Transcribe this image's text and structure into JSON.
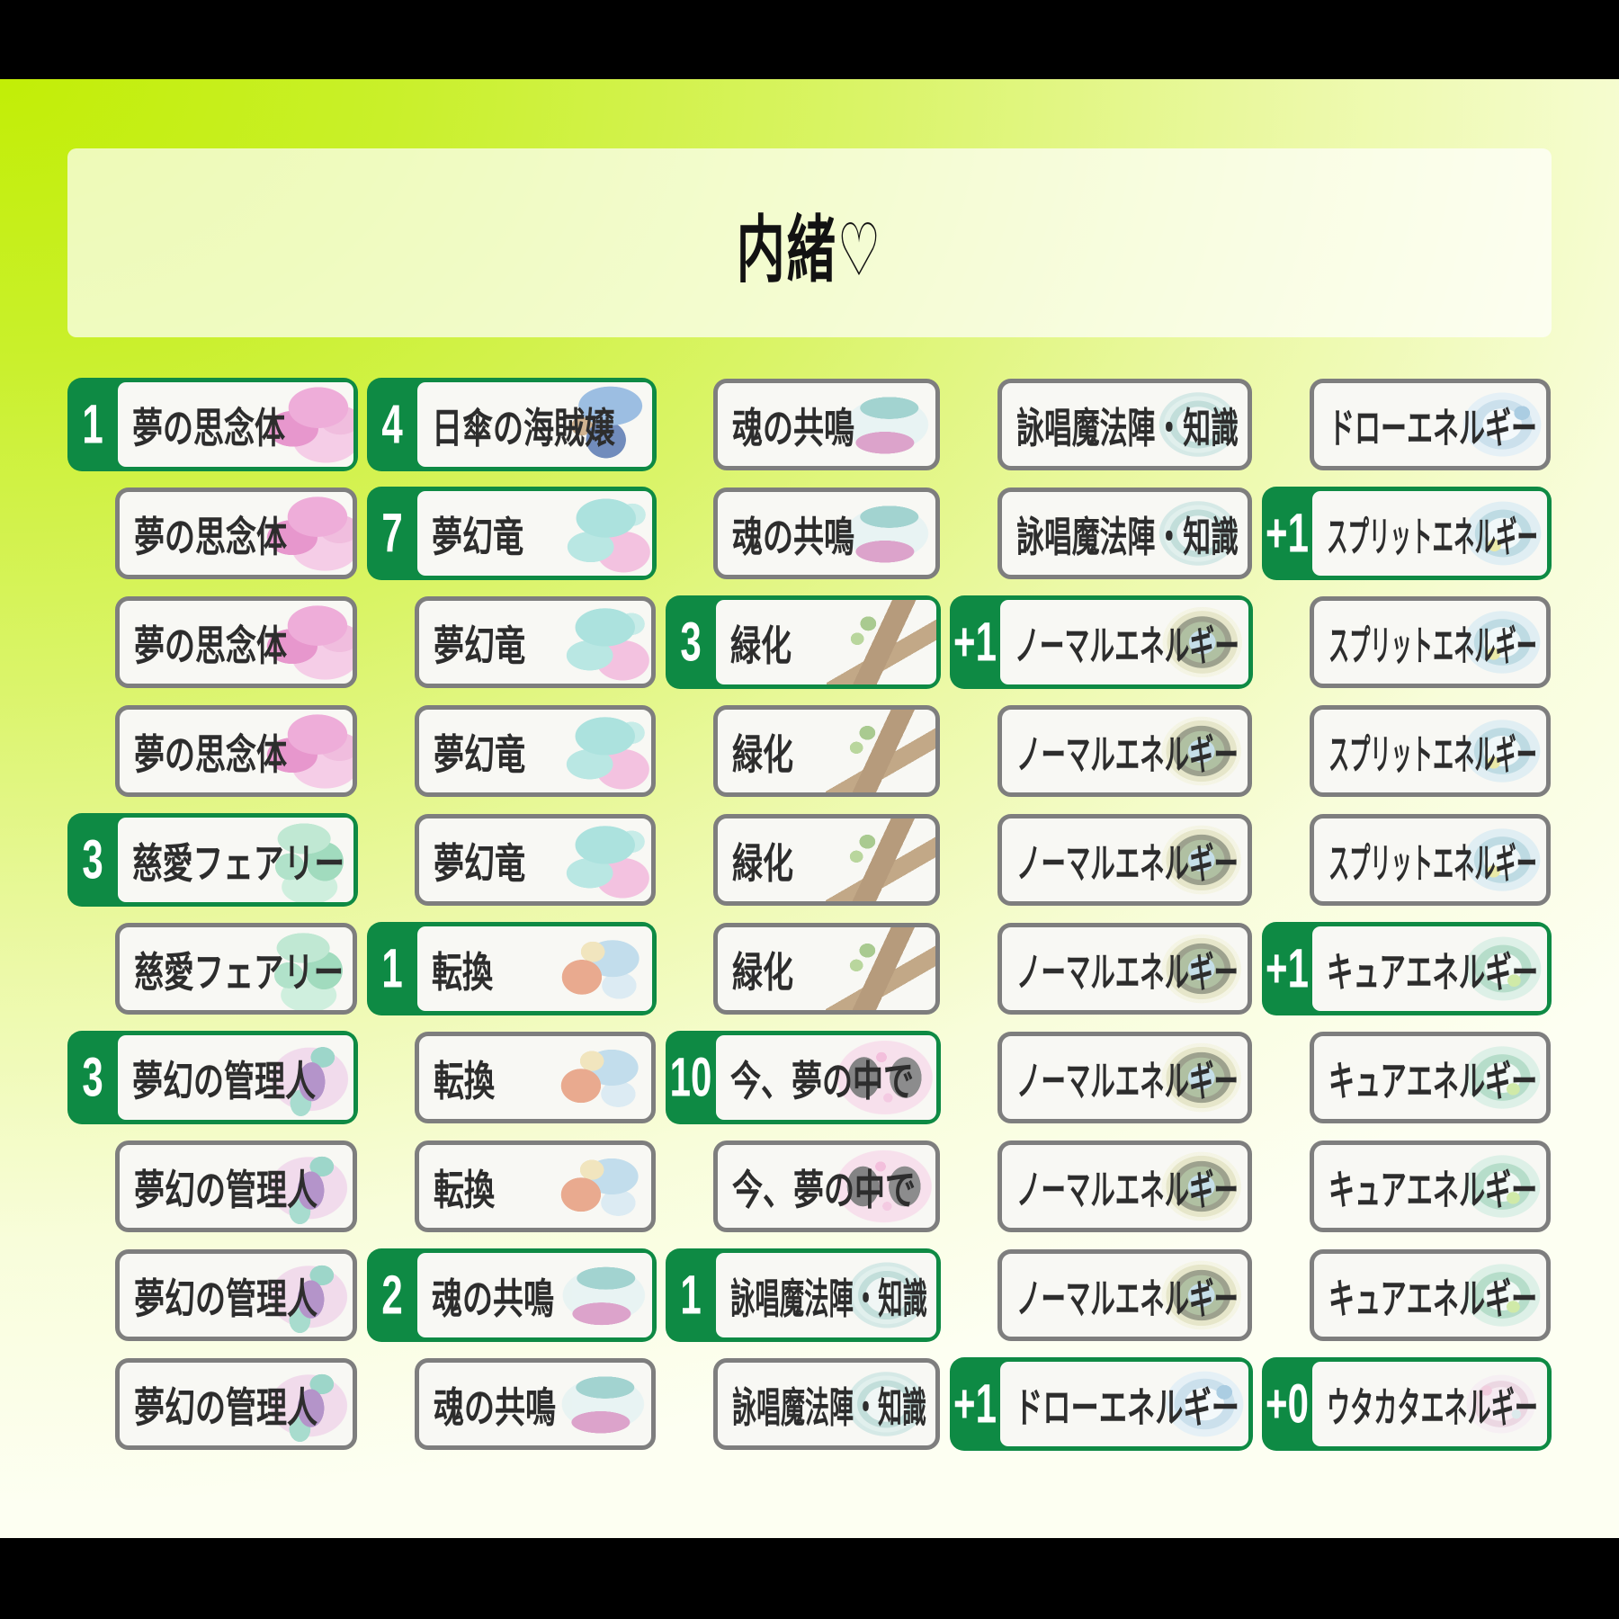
{
  "title": "内緒♡",
  "colors": {
    "accent_green": "#0e8a44",
    "border_gray": "#7e7e7e",
    "card_bg": "#f8f8f4",
    "name_text": "#2d2d2d",
    "letterbox": "#000000",
    "background_bright": "#c2ee06",
    "background_pale": "#fdfff2"
  },
  "arts": {
    "夢の思念体": "dream-wisp",
    "慈愛フェアリー": "charity-fairy",
    "夢幻の管理人": "dream-caretaker",
    "日傘の海賊嬢": "parasol-pirate",
    "夢幻竜": "dream-dragon",
    "転換": "conversion",
    "魂の共鳴": "soul-resonance",
    "緑化": "greening",
    "今、夢の中で": "in-a-dream",
    "詠唱魔法陣・知識": "chant-circle",
    "ノーマルエネルギー": "normal-energy",
    "ドローエネルギー": "draw-energy",
    "スプリットエネルギー": "split-energy",
    "キュアエネルギー": "cure-energy",
    "ウタカタエネルギー": "utakata-energy"
  },
  "deck": {
    "columns": [
      {
        "cards": [
          {
            "count": "1",
            "name": "夢の思念体"
          },
          {
            "count": null,
            "name": "夢の思念体"
          },
          {
            "count": null,
            "name": "夢の思念体"
          },
          {
            "count": null,
            "name": "夢の思念体"
          },
          {
            "count": "3",
            "name": "慈愛フェアリー"
          },
          {
            "count": null,
            "name": "慈愛フェアリー"
          },
          {
            "count": "3",
            "name": "夢幻の管理人"
          },
          {
            "count": null,
            "name": "夢幻の管理人"
          },
          {
            "count": null,
            "name": "夢幻の管理人"
          },
          {
            "count": null,
            "name": "夢幻の管理人"
          }
        ]
      },
      {
        "cards": [
          {
            "count": "4",
            "name": "日傘の海賊嬢"
          },
          {
            "count": "7",
            "name": "夢幻竜"
          },
          {
            "count": null,
            "name": "夢幻竜"
          },
          {
            "count": null,
            "name": "夢幻竜"
          },
          {
            "count": null,
            "name": "夢幻竜"
          },
          {
            "count": "1",
            "name": "転換"
          },
          {
            "count": null,
            "name": "転換"
          },
          {
            "count": null,
            "name": "転換"
          },
          {
            "count": "2",
            "name": "魂の共鳴"
          },
          {
            "count": null,
            "name": "魂の共鳴"
          }
        ]
      },
      {
        "cards": [
          {
            "count": null,
            "name": "魂の共鳴"
          },
          {
            "count": null,
            "name": "魂の共鳴"
          },
          {
            "count": "3",
            "name": "緑化"
          },
          {
            "count": null,
            "name": "緑化"
          },
          {
            "count": null,
            "name": "緑化"
          },
          {
            "count": null,
            "name": "緑化"
          },
          {
            "count": "10",
            "name": "今、夢の中で"
          },
          {
            "count": null,
            "name": "今、夢の中で"
          },
          {
            "count": "1",
            "name": "詠唱魔法陣・知識"
          },
          {
            "count": null,
            "name": "詠唱魔法陣・知識"
          }
        ]
      },
      {
        "cards": [
          {
            "count": null,
            "name": "詠唱魔法陣・知識"
          },
          {
            "count": null,
            "name": "詠唱魔法陣・知識"
          },
          {
            "count": "+1",
            "name": "ノーマルエネルギー"
          },
          {
            "count": null,
            "name": "ノーマルエネルギー"
          },
          {
            "count": null,
            "name": "ノーマルエネルギー"
          },
          {
            "count": null,
            "name": "ノーマルエネルギー"
          },
          {
            "count": null,
            "name": "ノーマルエネルギー"
          },
          {
            "count": null,
            "name": "ノーマルエネルギー"
          },
          {
            "count": null,
            "name": "ノーマルエネルギー"
          },
          {
            "count": "+1",
            "name": "ドローエネルギー"
          }
        ]
      },
      {
        "cards": [
          {
            "count": null,
            "name": "ドローエネルギー"
          },
          {
            "count": "+1",
            "name": "スプリットエネルギー"
          },
          {
            "count": null,
            "name": "スプリットエネルギー"
          },
          {
            "count": null,
            "name": "スプリットエネルギー"
          },
          {
            "count": null,
            "name": "スプリットエネルギー"
          },
          {
            "count": "+1",
            "name": "キュアエネルギー"
          },
          {
            "count": null,
            "name": "キュアエネルギー"
          },
          {
            "count": null,
            "name": "キュアエネルギー"
          },
          {
            "count": null,
            "name": "キュアエネルギー"
          },
          {
            "count": "+0",
            "name": "ウタカタエネルギー"
          }
        ]
      }
    ]
  }
}
